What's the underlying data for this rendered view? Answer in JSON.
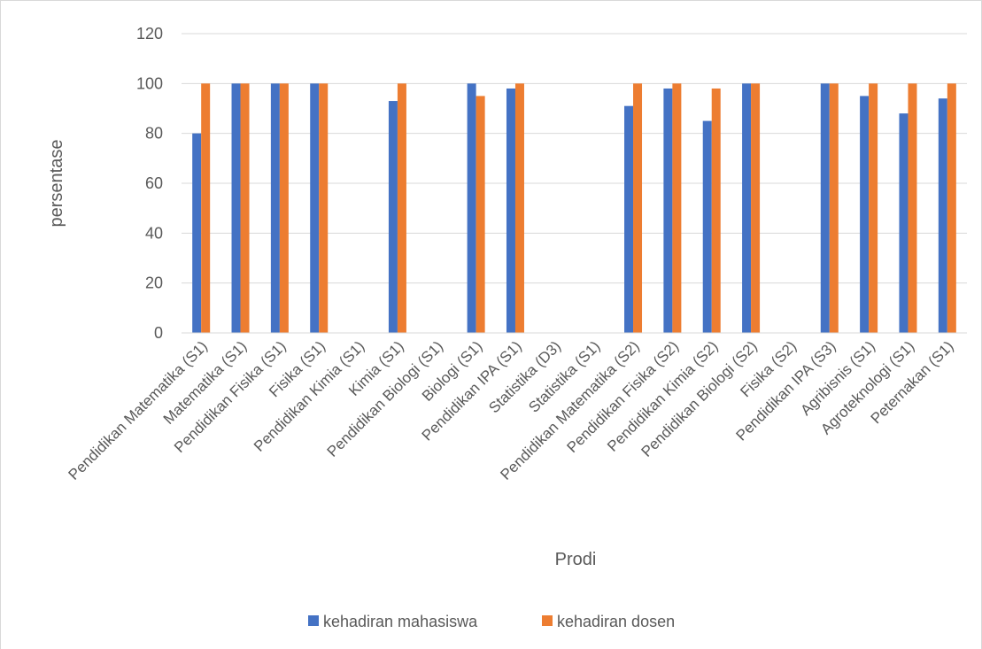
{
  "chart_data": {
    "type": "bar",
    "xlabel": "Prodi",
    "ylabel": "persentase",
    "ylim": [
      0,
      120
    ],
    "yticks": [
      0,
      20,
      40,
      60,
      80,
      100,
      120
    ],
    "grid": true,
    "legend_position": "bottom",
    "categories": [
      "Pendidikan Matematika (S1)",
      "Matematika (S1)",
      "Pendidikan Fisika (S1)",
      "Fisika (S1)",
      "Pendidikan Kimia (S1)",
      "Kimia (S1)",
      "Pendidikan Biologi (S1)",
      "Biologi (S1)",
      "Pendidikan IPA (S1)",
      "Statistika (D3)",
      "Statistika (S1)",
      "Pendidikan Matematika (S2)",
      "Pendidikan Fisika (S2)",
      "Pendidikan Kimia (S2)",
      "Pendidikan Biologi (S2)",
      "Fisika (S2)",
      "Pendidikan IPA (S3)",
      "Agribisnis (S1)",
      "Agroteknologi (S1)",
      "Peternakan (S1)"
    ],
    "series": [
      {
        "name": "kehadiran mahasiswa",
        "color": "#4472c4",
        "values": [
          80,
          100,
          100,
          100,
          null,
          93,
          null,
          100,
          98,
          null,
          null,
          91,
          98,
          85,
          100,
          null,
          100,
          95,
          88,
          94
        ]
      },
      {
        "name": "kehadiran dosen",
        "color": "#ed7d31",
        "values": [
          100,
          100,
          100,
          100,
          null,
          100,
          null,
          95,
          100,
          null,
          null,
          100,
          100,
          98,
          100,
          null,
          100,
          100,
          100,
          100
        ]
      }
    ]
  }
}
